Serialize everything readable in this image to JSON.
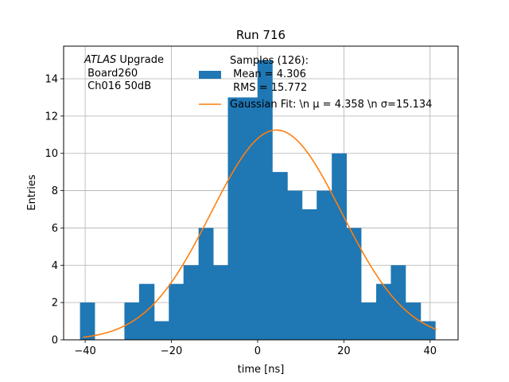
{
  "chart_data": {
    "type": "bar",
    "title": "Run 716",
    "xlabel": "time [ns]",
    "ylabel": "Entries",
    "xlim": [
      -45,
      46.5
    ],
    "ylim": [
      0,
      15.75
    ],
    "xticks": [
      -40,
      -20,
      0,
      20,
      40
    ],
    "xtick_labels": [
      "−40",
      "−20",
      "0",
      "20",
      "40"
    ],
    "yticks": [
      0,
      2,
      4,
      6,
      8,
      10,
      12,
      14
    ],
    "ytick_labels": [
      "0",
      "2",
      "4",
      "6",
      "8",
      "10",
      "12",
      "14"
    ],
    "grid": true,
    "histogram": {
      "name": "Samples (126):\n Mean = 4.306\n RMS = 15.772",
      "color": "#1f77b4",
      "bin_edges": [
        -41.2,
        -37.8,
        -34.3,
        -30.9,
        -27.5,
        -24.0,
        -20.6,
        -17.2,
        -13.7,
        -10.3,
        -6.9,
        -3.4,
        0.0,
        3.4,
        6.9,
        10.3,
        13.7,
        17.2,
        20.6,
        24.0,
        27.5,
        30.9,
        34.3,
        37.8,
        41.2
      ],
      "bin_edges_extended_last": 41.2,
      "bins": [
        {
          "x0": -41.2,
          "x1": -37.8,
          "count": 2
        },
        {
          "x0": -37.8,
          "x1": -34.3,
          "count": 0
        },
        {
          "x0": -34.3,
          "x1": -30.9,
          "count": 0
        },
        {
          "x0": -30.9,
          "x1": -27.5,
          "count": 2
        },
        {
          "x0": -27.5,
          "x1": -24.0,
          "count": 3
        },
        {
          "x0": -24.0,
          "x1": -20.6,
          "count": 1
        },
        {
          "x0": -20.6,
          "x1": -17.2,
          "count": 3
        },
        {
          "x0": -17.2,
          "x1": -13.7,
          "count": 4
        },
        {
          "x0": -13.7,
          "x1": -10.3,
          "count": 6
        },
        {
          "x0": -10.3,
          "x1": -6.9,
          "count": 4
        },
        {
          "x0": -6.9,
          "x1": -3.4,
          "count": 13
        },
        {
          "x0": -3.4,
          "x1": 0.0,
          "count": 13
        },
        {
          "x0": 0.0,
          "x1": 3.4,
          "count": 15
        },
        {
          "x0": 3.4,
          "x1": 6.9,
          "count": 9
        },
        {
          "x0": 6.9,
          "x1": 10.3,
          "count": 8
        },
        {
          "x0": 10.3,
          "x1": 13.7,
          "count": 7
        },
        {
          "x0": 13.7,
          "x1": 17.2,
          "count": 8
        },
        {
          "x0": 17.2,
          "x1": 20.6,
          "count": 10
        },
        {
          "x0": 20.6,
          "x1": 24.0,
          "count": 6
        },
        {
          "x0": 24.0,
          "x1": 27.5,
          "count": 2
        },
        {
          "x0": 27.5,
          "x1": 30.9,
          "count": 3
        },
        {
          "x0": 30.9,
          "x1": 34.3,
          "count": 4
        },
        {
          "x0": 34.3,
          "x1": 37.8,
          "count": 2
        },
        {
          "x0": 37.8,
          "x1": 41.2,
          "count": 1
        }
      ]
    },
    "fit": {
      "name": "Gaussian Fit: \\n μ = 4.358 \\n σ=15.134",
      "color": "#ff7f0e",
      "type": "gaussian",
      "amplitude": 11.25,
      "mu": 4.358,
      "sigma": 15.134,
      "x_range": [
        -40.5,
        41.5
      ]
    },
    "legend": {
      "placement": "upper-center",
      "hist_lines": [
        "Samples (126):",
        " Mean = 4.306",
        " RMS = 15.772"
      ],
      "fit_label": "Gaussian Fit: \\n μ = 4.358 \\n σ=15.134"
    },
    "annotation": {
      "placement": "top-left",
      "atlas": "ATLAS",
      "upgrade": " Upgrade",
      "line2": " Board260",
      "line3": " Ch016 50dB"
    }
  }
}
